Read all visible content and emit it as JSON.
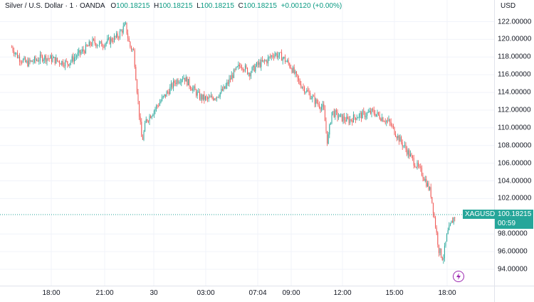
{
  "legend": {
    "title": "Silver / U.S. Dollar · 1 · OANDA",
    "o_key": "O",
    "o_val": "100.18215",
    "h_key": "H",
    "h_val": "100.18215",
    "l_key": "L",
    "l_val": "100.18215",
    "c_key": "C",
    "c_val": "100.18215",
    "change": "+0.00120 (+0.00%)"
  },
  "currency": "USD",
  "price_ticks": [
    "122.00000",
    "120.00000",
    "118.00000",
    "116.00000",
    "114.00000",
    "112.00000",
    "110.00000",
    "108.00000",
    "106.00000",
    "104.00000",
    "102.00000",
    "98.00000",
    "96.00000",
    "94.00000"
  ],
  "time_ticks": [
    "18:00",
    "21:00",
    "30",
    "03:00",
    "07:04",
    "09:00",
    "12:00",
    "15:00",
    "18:00"
  ],
  "last_price": {
    "symbol": "XAGUSD",
    "price": "100.18215",
    "countdown": "00:59"
  },
  "colors": {
    "up": "#26a69a",
    "down": "#ef5350",
    "grid": "#f0f3fa",
    "accent": "#9c27b0"
  },
  "chart_data": {
    "type": "line",
    "xlabel": "",
    "ylabel": "",
    "ylim": [
      92.5,
      123.5
    ],
    "x": [
      "15:36",
      "16:00",
      "16:30",
      "17:00",
      "17:30",
      "18:00",
      "18:30",
      "19:00",
      "19:30",
      "20:00",
      "20:30",
      "21:00",
      "21:30",
      "22:00",
      "22:30",
      "22:45",
      "23:00",
      "23:15",
      "23:30",
      "23:45",
      "00:00",
      "00:30",
      "01:00",
      "01:30",
      "02:00",
      "02:30",
      "03:00",
      "03:30",
      "04:00",
      "04:30",
      "05:00",
      "05:30",
      "06:00",
      "06:30",
      "07:04",
      "07:30",
      "08:00",
      "08:30",
      "09:00",
      "09:30",
      "10:00",
      "10:30",
      "10:45",
      "11:00",
      "11:30",
      "12:00",
      "12:30",
      "13:00",
      "13:30",
      "14:00",
      "14:30",
      "15:00",
      "15:30",
      "16:00",
      "16:30",
      "17:00",
      "17:15",
      "17:30",
      "17:45",
      "18:00",
      "18:15",
      "18:30"
    ],
    "series": [
      {
        "values": [
          119.1,
          118.0,
          117.3,
          117.6,
          118.0,
          117.8,
          117.5,
          117.3,
          118.1,
          118.8,
          119.7,
          119.4,
          119.8,
          120.3,
          121.6,
          119.3,
          118.6,
          113.2,
          108.4,
          110.8,
          111.4,
          112.7,
          113.9,
          115.2,
          115.8,
          114.6,
          113.5,
          113.2,
          113.6,
          114.4,
          116.0,
          117.2,
          116.2,
          117.1,
          117.6,
          118.4,
          118.0,
          117.0,
          115.2,
          114.1,
          113.0,
          112.2,
          108.3,
          111.8,
          111.2,
          110.8,
          111.3,
          111.5,
          111.8,
          111.2,
          110.6,
          109.0,
          107.6,
          106.1,
          104.8,
          102.7,
          99.5,
          96.2,
          95.2,
          97.9,
          99.2,
          100.18
        ]
      }
    ]
  }
}
